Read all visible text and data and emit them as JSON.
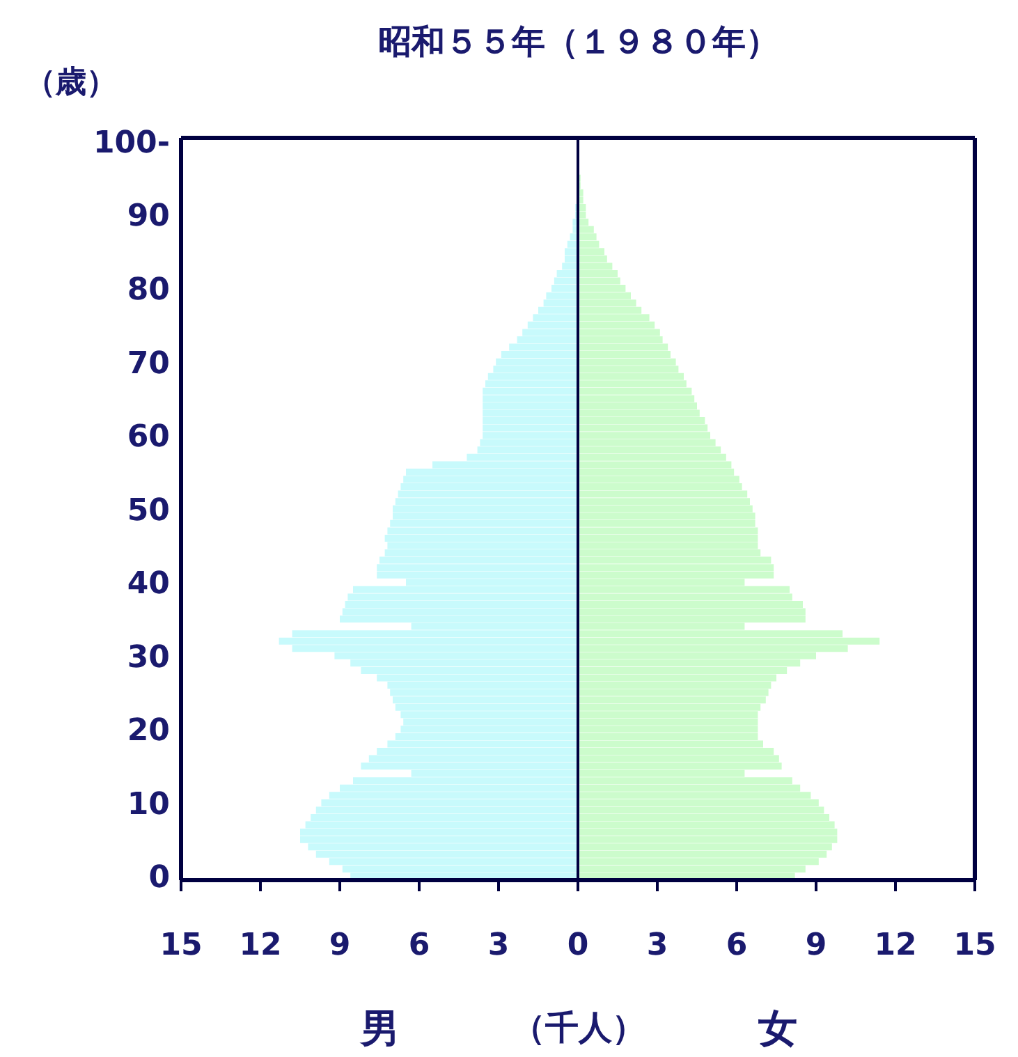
{
  "chart_data": {
    "type": "bar",
    "orientation": "horizontal",
    "stacked": true,
    "title": "昭和５５年（１９８０年）",
    "ylabel": "（歳）",
    "xlabel": "（千人）",
    "categories": [
      "100-",
      null,
      null,
      null,
      null,
      null,
      null,
      null,
      null,
      null,
      "90",
      null,
      null,
      null,
      null,
      null,
      null,
      null,
      null,
      null,
      "80",
      null,
      null,
      null,
      null,
      null,
      null,
      null,
      null,
      null,
      "70",
      null,
      null,
      null,
      null,
      null,
      null,
      null,
      null,
      null,
      "60",
      null,
      null,
      null,
      null,
      null,
      null,
      null,
      null,
      null,
      "50",
      null,
      null,
      null,
      null,
      null,
      null,
      null,
      null,
      null,
      "40",
      null,
      null,
      null,
      null,
      null,
      null,
      null,
      null,
      null,
      "30",
      null,
      null,
      null,
      null,
      null,
      null,
      null,
      null,
      null,
      "20",
      null,
      null,
      null,
      null,
      null,
      null,
      null,
      null,
      null,
      "10",
      null,
      null,
      null,
      null,
      null,
      null,
      null,
      null,
      null,
      "0"
    ],
    "series": [
      {
        "name": "男",
        "color": "#c8fafc",
        "values": [
          0,
          0,
          0,
          0,
          0,
          0,
          0,
          0,
          0,
          -0.1,
          -0.1,
          -0.2,
          -0.2,
          -0.3,
          -0.4,
          -0.5,
          -0.5,
          -0.6,
          -0.8,
          -0.9,
          -1.0,
          -1.2,
          -1.3,
          -1.5,
          -1.7,
          -1.9,
          -2.1,
          -2.3,
          -2.6,
          -2.9,
          -3.1,
          -3.2,
          -3.4,
          -3.5,
          -3.6,
          -3.6,
          -3.6,
          -3.6,
          -3.6,
          -3.6,
          -3.6,
          -3.7,
          -3.8,
          -4.2,
          -5.5,
          -6.5,
          -6.6,
          -6.7,
          -6.8,
          -6.9,
          -7.0,
          -7.0,
          -7.1,
          -7.2,
          -7.3,
          -7.2,
          -7.3,
          -7.5,
          -7.6,
          -7.6,
          -6.5,
          -8.5,
          -8.7,
          -8.8,
          -8.9,
          -9.0,
          -6.3,
          -10.8,
          -11.3,
          -10.8,
          -9.2,
          -8.6,
          -8.2,
          -7.6,
          -7.2,
          -7.1,
          -7.0,
          -6.9,
          -6.7,
          -6.6,
          -6.7,
          -6.9,
          -7.2,
          -7.6,
          -7.9,
          -8.2,
          -6.3,
          -8.5,
          -9.0,
          -9.4,
          -9.7,
          -9.9,
          -10.1,
          -10.3,
          -10.5,
          -10.5,
          -10.2,
          -9.9,
          -9.4,
          -8.9,
          -8.6
        ]
      },
      {
        "name": "女",
        "color": "#ccfccc",
        "values": [
          0,
          0,
          0,
          0,
          0,
          0.1,
          0.1,
          0.2,
          0.2,
          0.3,
          0.3,
          0.4,
          0.6,
          0.7,
          0.8,
          1.0,
          1.1,
          1.3,
          1.5,
          1.6,
          1.8,
          2.0,
          2.2,
          2.4,
          2.7,
          2.9,
          3.1,
          3.2,
          3.4,
          3.5,
          3.7,
          3.8,
          4.0,
          4.1,
          4.3,
          4.4,
          4.5,
          4.6,
          4.8,
          4.9,
          5.0,
          5.2,
          5.4,
          5.6,
          5.8,
          5.9,
          6.1,
          6.2,
          6.4,
          6.5,
          6.6,
          6.7,
          6.7,
          6.8,
          6.8,
          6.8,
          6.9,
          7.3,
          7.4,
          7.4,
          6.3,
          8.0,
          8.1,
          8.5,
          8.6,
          8.6,
          6.3,
          10.0,
          11.4,
          10.2,
          9.0,
          8.4,
          7.9,
          7.5,
          7.3,
          7.2,
          7.1,
          6.9,
          6.8,
          6.8,
          6.8,
          6.8,
          7.0,
          7.4,
          7.6,
          7.7,
          6.3,
          8.1,
          8.4,
          8.8,
          9.1,
          9.3,
          9.5,
          9.7,
          9.8,
          9.8,
          9.6,
          9.4,
          9.1,
          8.6,
          8.2
        ]
      }
    ],
    "xlim": [
      -15,
      15
    ],
    "xticks": [
      {
        "value": -15,
        "label": "15"
      },
      {
        "value": -12,
        "label": "12"
      },
      {
        "value": -9,
        "label": "9"
      },
      {
        "value": -6,
        "label": "6"
      },
      {
        "value": -3,
        "label": "3"
      },
      0,
      3,
      6,
      9,
      12,
      15
    ],
    "ref_lines": [
      {
        "axis": "x",
        "value": 0,
        "color": "#000040"
      }
    ]
  }
}
